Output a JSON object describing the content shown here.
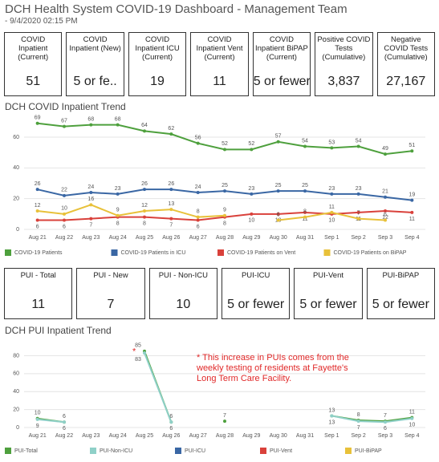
{
  "header": {
    "title": "DCH Health System COVID-19 Dashboard - Management Team",
    "subtitle": "- 9/4/2020 02:15 PM"
  },
  "kpis_top": [
    {
      "label": "COVID Inpatient (Current)",
      "value": "51"
    },
    {
      "label": "COVID Inpatient (New)",
      "value": "5 or fe.."
    },
    {
      "label": "COVID Inpatient ICU (Current)",
      "value": "19"
    },
    {
      "label": "COVID Inpatient Vent (Current)",
      "value": "11"
    },
    {
      "label": "COVID Inpatient BiPAP (Current)",
      "value": "5 or fewer"
    },
    {
      "label": "Positive COVID Tests (Cumulative)",
      "value": "3,837"
    },
    {
      "label": "Negative COVID Tests (Cumulative)",
      "value": "27,167"
    }
  ],
  "kpis_pui": [
    {
      "label": "PUI - Total",
      "value": "11"
    },
    {
      "label": "PUI - New",
      "value": "7"
    },
    {
      "label": "PUI - Non-ICU",
      "value": "10"
    },
    {
      "label": "PUI-ICU",
      "value": "5 or fewer"
    },
    {
      "label": "PUI-Vent",
      "value": "5 or fewer"
    },
    {
      "label": "PUI-BiPAP",
      "value": "5 or fewer"
    }
  ],
  "chart_data": [
    {
      "type": "line",
      "title": "DCH COVID Inpatient Trend",
      "categories": [
        "Aug 21",
        "Aug 22",
        "Aug 23",
        "Aug 24",
        "Aug 25",
        "Aug 26",
        "Aug 27",
        "Aug 28",
        "Aug 29",
        "Aug 30",
        "Aug 31",
        "Sep 1",
        "Sep 2",
        "Sep 3",
        "Sep 4"
      ],
      "series": [
        {
          "name": "COVID-19 Patients",
          "color": "#4ea03d",
          "values": [
            69,
            67,
            68,
            68,
            64,
            62,
            56,
            52,
            52,
            57,
            54,
            53,
            54,
            49,
            51
          ]
        },
        {
          "name": "COVID-19 Patients in ICU",
          "color": "#3a67a4",
          "values": [
            26,
            22,
            24,
            23,
            26,
            26,
            24,
            25,
            23,
            25,
            25,
            23,
            23,
            21,
            19
          ]
        },
        {
          "name": "COVID-19 Patients on Vent",
          "color": "#d9413b",
          "values": [
            6,
            6,
            7,
            8,
            8,
            7,
            6,
            8,
            10,
            10,
            11,
            10,
            11,
            12,
            11
          ]
        },
        {
          "name": "COVID-19 Patients on BiPAP",
          "color": "#e8c13a",
          "values": [
            12,
            10,
            16,
            9,
            12,
            13,
            8,
            9,
            null,
            6,
            8,
            11,
            7,
            6,
            null
          ]
        }
      ],
      "ylim": [
        0,
        72
      ],
      "yticks": [
        0,
        20,
        40,
        60
      ],
      "grid": true
    },
    {
      "type": "line",
      "title": "DCH PUI Inpatient Trend",
      "categories": [
        "Aug 21",
        "Aug 22",
        "Aug 23",
        "Aug 24",
        "Aug 25",
        "Aug 26",
        "Aug 27",
        "Aug 28",
        "Aug 29",
        "Aug 30",
        "Aug 31",
        "Sep 1",
        "Sep 2",
        "Sep 3",
        "Sep 4"
      ],
      "series": [
        {
          "name": "PUI-Total",
          "color": "#4ea03d",
          "values": [
            10,
            6,
            null,
            null,
            85,
            6,
            null,
            7,
            null,
            null,
            null,
            13,
            8,
            7,
            11
          ]
        },
        {
          "name": "PUI-Non-ICU",
          "color": "#8fd0c8",
          "values": [
            9,
            6,
            null,
            null,
            83,
            6,
            null,
            null,
            null,
            null,
            null,
            13,
            7,
            6,
            10
          ]
        },
        {
          "name": "PUI-ICU",
          "color": "#3a67a4",
          "values": [
            null,
            null,
            null,
            null,
            null,
            null,
            null,
            null,
            null,
            null,
            null,
            null,
            null,
            null,
            null
          ]
        },
        {
          "name": "PUI-Vent",
          "color": "#d9413b",
          "values": [
            null,
            null,
            null,
            null,
            null,
            null,
            null,
            null,
            null,
            null,
            null,
            null,
            null,
            null,
            null
          ]
        },
        {
          "name": "PUI-BiPAP",
          "color": "#e8c13a",
          "values": [
            null,
            null,
            null,
            null,
            null,
            null,
            null,
            null,
            null,
            null,
            null,
            null,
            null,
            null,
            null
          ]
        }
      ],
      "annotation": {
        "marker": "*",
        "text": "* This increase in PUIs comes from the weekly testing of residents at Fayette's Long Term Care Facility."
      },
      "ylim": [
        0,
        92
      ],
      "yticks": [
        0,
        20,
        40,
        60,
        80
      ],
      "grid": true
    }
  ]
}
